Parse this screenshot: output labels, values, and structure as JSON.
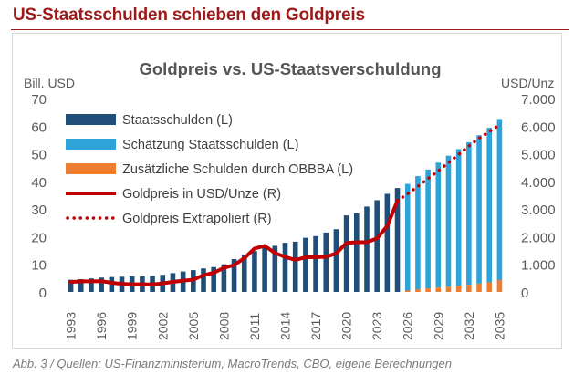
{
  "header": {
    "headline": "US-Staatsschulden schieben den Goldpreis",
    "caption": "Abb. 3 / Quellen: US-Finanzministerium, MacroTrends, CBO, eigene Berechnungen"
  },
  "colors": {
    "headline": "#9c1a1a",
    "debt": "#1f4e79",
    "estimate": "#2ea3d9",
    "obbba": "#ed7d31",
    "gold": "#c00000"
  },
  "chart_data": {
    "type": "bar",
    "title": "Goldpreis vs. US-Staatsverschuldung",
    "ylabel": "Bill. USD",
    "y2label": "USD/Unz",
    "ylim": [
      0,
      70
    ],
    "y2lim": [
      0,
      7000
    ],
    "yticks": [
      "0",
      "10",
      "20",
      "30",
      "40",
      "50",
      "60",
      "70"
    ],
    "y2ticks": [
      "0",
      "1.000",
      "2.000",
      "3.000",
      "4.000",
      "5.000",
      "6.000",
      "7.000"
    ],
    "xtick_labels": [
      "1993",
      "1996",
      "1999",
      "2002",
      "2005",
      "2008",
      "2011",
      "2014",
      "2017",
      "2020",
      "2023",
      "2026",
      "2029",
      "2032",
      "2035"
    ],
    "grid": false,
    "legend": "top-left",
    "years": [
      1993,
      1994,
      1995,
      1996,
      1997,
      1998,
      1999,
      2000,
      2001,
      2002,
      2003,
      2004,
      2005,
      2006,
      2007,
      2008,
      2009,
      2010,
      2011,
      2012,
      2013,
      2014,
      2015,
      2016,
      2017,
      2018,
      2019,
      2020,
      2021,
      2022,
      2023,
      2024,
      2025,
      2026,
      2027,
      2028,
      2029,
      2030,
      2031,
      2032,
      2033,
      2034,
      2035
    ],
    "series": [
      {
        "name": "Staatsschulden (L)",
        "axis": "left",
        "kind": "bar",
        "values": [
          4.4,
          4.6,
          4.9,
          5.2,
          5.4,
          5.5,
          5.6,
          5.7,
          5.8,
          6.2,
          6.8,
          7.4,
          7.9,
          8.5,
          9.0,
          10.0,
          11.9,
          13.5,
          14.8,
          16.1,
          16.7,
          17.8,
          18.2,
          19.6,
          20.2,
          21.5,
          22.7,
          27.7,
          28.4,
          30.9,
          33.2,
          35.5,
          37.6,
          null,
          null,
          null,
          null,
          null,
          null,
          null,
          null,
          null,
          null
        ]
      },
      {
        "name": "Schätzung Staatsschulden (L)",
        "axis": "left",
        "kind": "bar",
        "values": [
          null,
          null,
          null,
          null,
          null,
          null,
          null,
          null,
          null,
          null,
          null,
          null,
          null,
          null,
          null,
          null,
          null,
          null,
          null,
          null,
          null,
          null,
          null,
          null,
          null,
          null,
          null,
          null,
          null,
          null,
          null,
          null,
          null,
          38.6,
          40.9,
          43.0,
          45.2,
          47.4,
          49.5,
          51.6,
          53.7,
          55.9,
          58.3
        ]
      },
      {
        "name": "Zusätzliche Schulden durch OBBBA (L)",
        "axis": "left",
        "kind": "bar",
        "values": [
          null,
          null,
          null,
          null,
          null,
          null,
          null,
          null,
          null,
          null,
          null,
          null,
          null,
          null,
          null,
          null,
          null,
          null,
          null,
          null,
          null,
          null,
          null,
          null,
          null,
          null,
          null,
          null,
          null,
          null,
          null,
          null,
          null,
          0.5,
          1.0,
          1.3,
          1.6,
          1.9,
          2.2,
          2.6,
          3.0,
          3.5,
          4.3
        ]
      },
      {
        "name": "Goldpreis in USD/Unze (R)",
        "axis": "right",
        "kind": "line",
        "values": [
          360,
          384,
          384,
          388,
          331,
          294,
          279,
          279,
          271,
          310,
          363,
          409,
          444,
          603,
          695,
          872,
          972,
          1225,
          1572,
          1669,
          1411,
          1266,
          1160,
          1251,
          1257,
          1268,
          1393,
          1770,
          1800,
          1800,
          1943,
          2386,
          3300,
          null,
          null,
          null,
          null,
          null,
          null,
          null,
          null,
          null,
          null
        ]
      },
      {
        "name": "Goldpreis Extrapoliert (R)",
        "axis": "right",
        "kind": "dotted-line",
        "values": [
          null,
          null,
          null,
          null,
          null,
          null,
          null,
          null,
          null,
          null,
          null,
          null,
          null,
          null,
          null,
          null,
          null,
          null,
          null,
          null,
          null,
          null,
          null,
          null,
          null,
          null,
          null,
          null,
          null,
          null,
          null,
          null,
          3300,
          3550,
          3820,
          4100,
          4380,
          4680,
          4980,
          5280,
          5560,
          5800,
          6050
        ]
      }
    ]
  }
}
